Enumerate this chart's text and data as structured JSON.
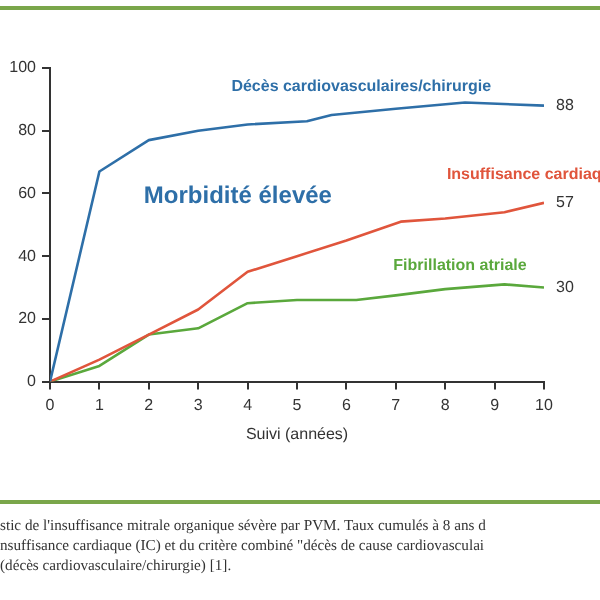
{
  "chart_data": {
    "type": "line",
    "xlabel": "Suivi (années)",
    "xlim": [
      0,
      10
    ],
    "xticks": [
      0,
      1,
      2,
      3,
      4,
      5,
      6,
      7,
      8,
      9,
      10
    ],
    "ylim": [
      0,
      100
    ],
    "yticks": [
      0,
      20,
      40,
      60,
      80,
      100
    ],
    "grid": false,
    "legend": false,
    "marker": "none",
    "series": [
      {
        "name": "Décès cardiovasculaires/chirurgie",
        "color": "#2e6fa8",
        "x": [
          0,
          1,
          2,
          3,
          4,
          5.2,
          5.7,
          7,
          8.4,
          10
        ],
        "values": [
          0,
          67,
          77,
          80,
          82,
          83,
          85,
          87,
          89,
          88
        ],
        "value_labels": [
          null,
          null,
          null,
          null,
          null,
          null,
          null,
          null,
          null,
          "88"
        ]
      },
      {
        "name": "Insuffisance cardiaq",
        "color": "#e0553c",
        "x": [
          0,
          1,
          2,
          3,
          4,
          5,
          6,
          7.1,
          8,
          9.2,
          10
        ],
        "values": [
          0,
          7,
          15,
          23,
          35,
          40,
          45,
          51,
          52,
          54,
          57
        ],
        "value_labels": [
          null,
          null,
          null,
          null,
          null,
          null,
          null,
          null,
          null,
          null,
          "57"
        ]
      },
      {
        "name": "Fibrillation atriale",
        "color": "#5aa83c",
        "x": [
          0,
          1,
          2,
          3,
          4,
          5,
          6.2,
          7,
          8,
          9.2,
          10
        ],
        "values": [
          0,
          5,
          15,
          17,
          25,
          26,
          26,
          27.5,
          29.5,
          31,
          30
        ],
        "value_labels": [
          null,
          null,
          null,
          null,
          null,
          null,
          null,
          null,
          null,
          null,
          "30"
        ]
      }
    ],
    "annotations": [
      "Morbidité élevée",
      "stic de l'insuffisance mitrale organique sévère par PVM. Taux cumulés à 8 ans d",
      "nsuffisance cardiaque (IC) et du critère combiné \"décès de cause cardiovasculai",
      "(décès cardiovasculaire/chirurgie) [1]."
    ]
  }
}
